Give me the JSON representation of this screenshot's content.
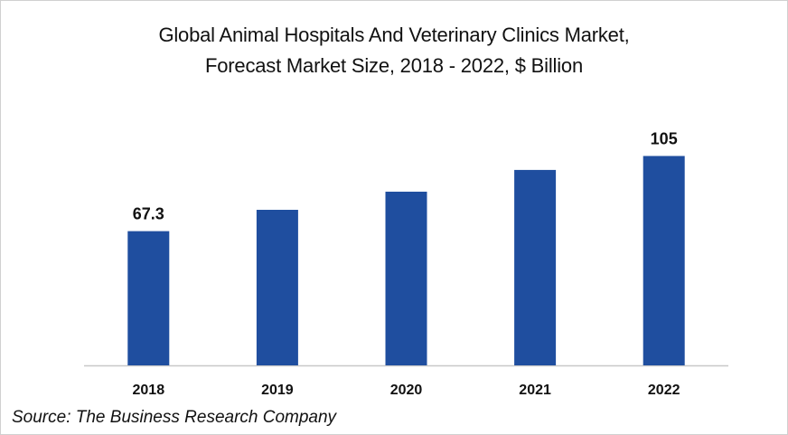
{
  "chart_data": {
    "type": "bar",
    "title": "Global Animal Hospitals And Veterinary Clinics Market, Forecast Market Size, 2018 - 2022, $ Billion",
    "title_lines": [
      "Global Animal Hospitals And Veterinary Clinics Market,",
      "Forecast Market Size,  2018 - 2022, $ Billion"
    ],
    "categories": [
      "2018",
      "2019",
      "2020",
      "2021",
      "2022"
    ],
    "values": [
      67.3,
      78.0,
      87.1,
      98.0,
      105
    ],
    "data_labels": [
      "67.3",
      "",
      "",
      "",
      "105"
    ],
    "xlabel": "",
    "ylabel": "",
    "ylim": [
      0,
      115
    ],
    "grid": false,
    "legend": "none",
    "bar_color": "#1f4e9f",
    "axis_color": "#c8c8c8"
  },
  "source": "Source: The Business Research Company"
}
